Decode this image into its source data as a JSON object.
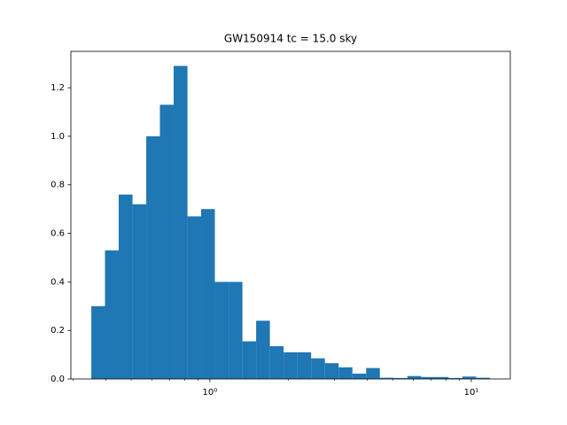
{
  "chart_data": {
    "type": "histogram",
    "title": "GW150914 tc = 15.0 sky",
    "bins": [
      0.352,
      0.397,
      0.448,
      0.506,
      0.571,
      0.644,
      0.727,
      0.821,
      0.926,
      1.045,
      1.18,
      1.332,
      1.503,
      1.697,
      1.915,
      2.161,
      2.44,
      2.754,
      3.109,
      3.509,
      3.96,
      4.47,
      5.046,
      5.695,
      6.429,
      7.256,
      8.189,
      9.243,
      10.43,
      11.78
    ],
    "values": [
      0.3,
      0.53,
      0.76,
      0.72,
      1.0,
      1.13,
      1.29,
      0.67,
      0.7,
      0.4,
      0.4,
      0.155,
      0.24,
      0.135,
      0.11,
      0.11,
      0.085,
      0.065,
      0.048,
      0.022,
      0.045,
      0.005,
      0.004,
      0.012,
      0.008,
      0.008,
      0.004,
      0.01,
      0.005
    ],
    "color": "#1f77b4",
    "xscale": "log",
    "xlim": [
      0.294,
      14.1
    ],
    "xticks": [
      {
        "value": 1,
        "label": "10⁰"
      },
      {
        "value": 10,
        "label": "10¹"
      }
    ],
    "xminorticks": [
      0.3,
      0.4,
      0.5,
      0.6,
      0.7,
      0.8,
      0.9,
      2,
      3,
      4,
      5,
      6,
      7,
      8,
      9
    ],
    "ylim": [
      0,
      1.35
    ],
    "yticks": [
      {
        "value": 0,
        "label": "0.0"
      },
      0.2,
      0.4,
      0.6,
      0.8,
      {
        "value": 1,
        "label": "1.0"
      },
      1.2
    ]
  }
}
